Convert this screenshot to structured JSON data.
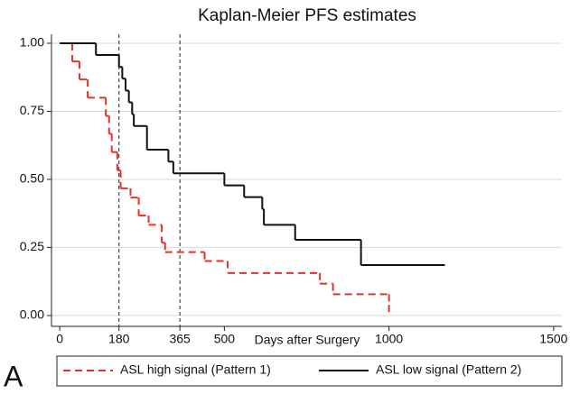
{
  "chart_data": {
    "type": "step",
    "title": "Kaplan-Meier PFS estimates",
    "x_label": "Days after Surgery",
    "panel_label": "A",
    "xlim": [
      -25,
      1525
    ],
    "ylim": [
      -0.04,
      1.033
    ],
    "xticks": [
      0,
      180,
      365,
      500,
      1000,
      1500
    ],
    "yticks": [
      {
        "value": 0,
        "label": "0.00"
      },
      {
        "value": 0.25,
        "label": "0.25"
      },
      {
        "value": 0.5,
        "label": "0.50"
      },
      {
        "value": 0.75,
        "label": "0.75"
      },
      {
        "value": 1,
        "label": "1.00"
      }
    ],
    "grid": true,
    "reference_lines": [
      180,
      365
    ],
    "series": [
      {
        "name": "ASL high signal (Pattern 1)",
        "color": "#e8302a",
        "dashed": true,
        "x": [
          0,
          38,
          60,
          85,
          140,
          150,
          158,
          175,
          185,
          215,
          240,
          270,
          310,
          320,
          440,
          510,
          790,
          830,
          1000
        ],
        "values": [
          1.0,
          0.933,
          0.867,
          0.8,
          0.733,
          0.667,
          0.6,
          0.533,
          0.467,
          0.433,
          0.367,
          0.333,
          0.267,
          0.233,
          0.2,
          0.156,
          0.117,
          0.078,
          0.039
        ]
      },
      {
        "name": "ASL low signal (Pattern 2)",
        "color": "#111111",
        "dashed": false,
        "x": [
          0,
          110,
          180,
          190,
          200,
          210,
          220,
          225,
          265,
          330,
          345,
          500,
          560,
          615,
          620,
          715,
          915,
          1170
        ],
        "values": [
          1.0,
          0.957,
          0.913,
          0.87,
          0.826,
          0.783,
          0.739,
          0.696,
          0.609,
          0.565,
          0.522,
          0.478,
          0.435,
          0.391,
          0.333,
          0.278,
          0.185,
          0.185
        ]
      }
    ]
  }
}
